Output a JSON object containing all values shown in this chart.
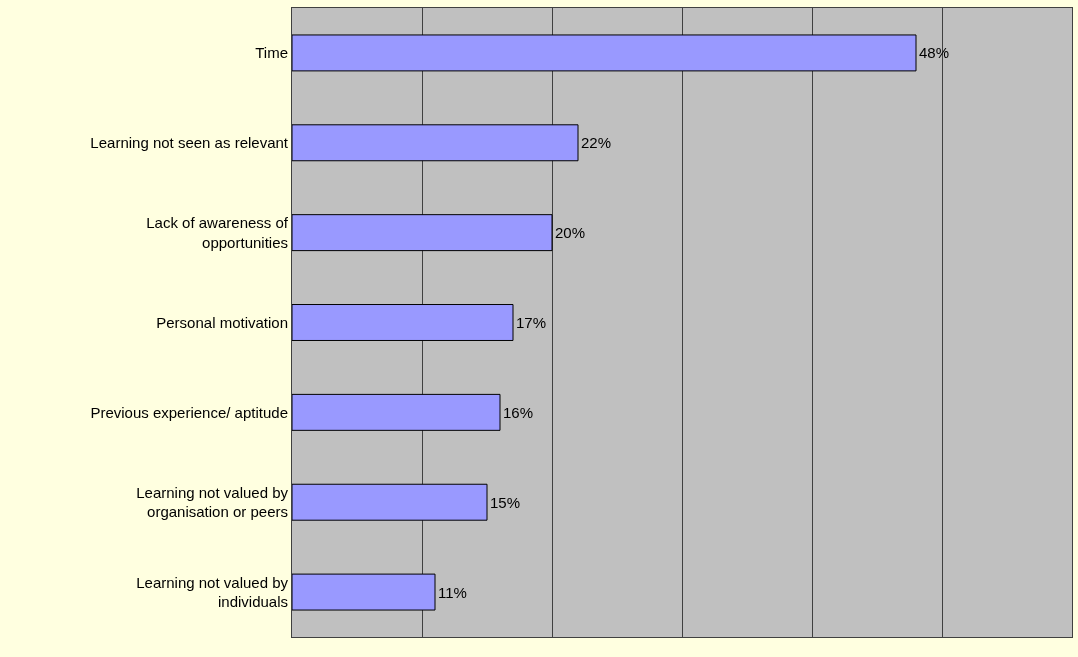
{
  "chart_data": {
    "type": "bar",
    "orientation": "horizontal",
    "categories": [
      "Time",
      "Learning not seen as relevant",
      "Lack of awareness of opportunities",
      "Personal motivation",
      "Previous experience/ aptitude",
      "Learning not valued by organisation or peers",
      "Learning not valued by individuals"
    ],
    "values": [
      48,
      22,
      20,
      17,
      16,
      15,
      11
    ],
    "value_labels": [
      "48%",
      "22%",
      "20%",
      "17%",
      "16%",
      "15%",
      "11%"
    ],
    "color": "#9999ff",
    "xlim": [
      0,
      60
    ],
    "xticks": [
      {
        "value": 0,
        "label": null
      },
      {
        "value": 10,
        "label": null
      },
      {
        "value": 20,
        "label": null
      },
      {
        "value": 30,
        "label": null
      },
      {
        "value": 40,
        "label": null
      },
      {
        "value": 50,
        "label": null
      },
      {
        "value": 60,
        "label": null
      }
    ],
    "grid": "x",
    "tick_labels": "y"
  }
}
